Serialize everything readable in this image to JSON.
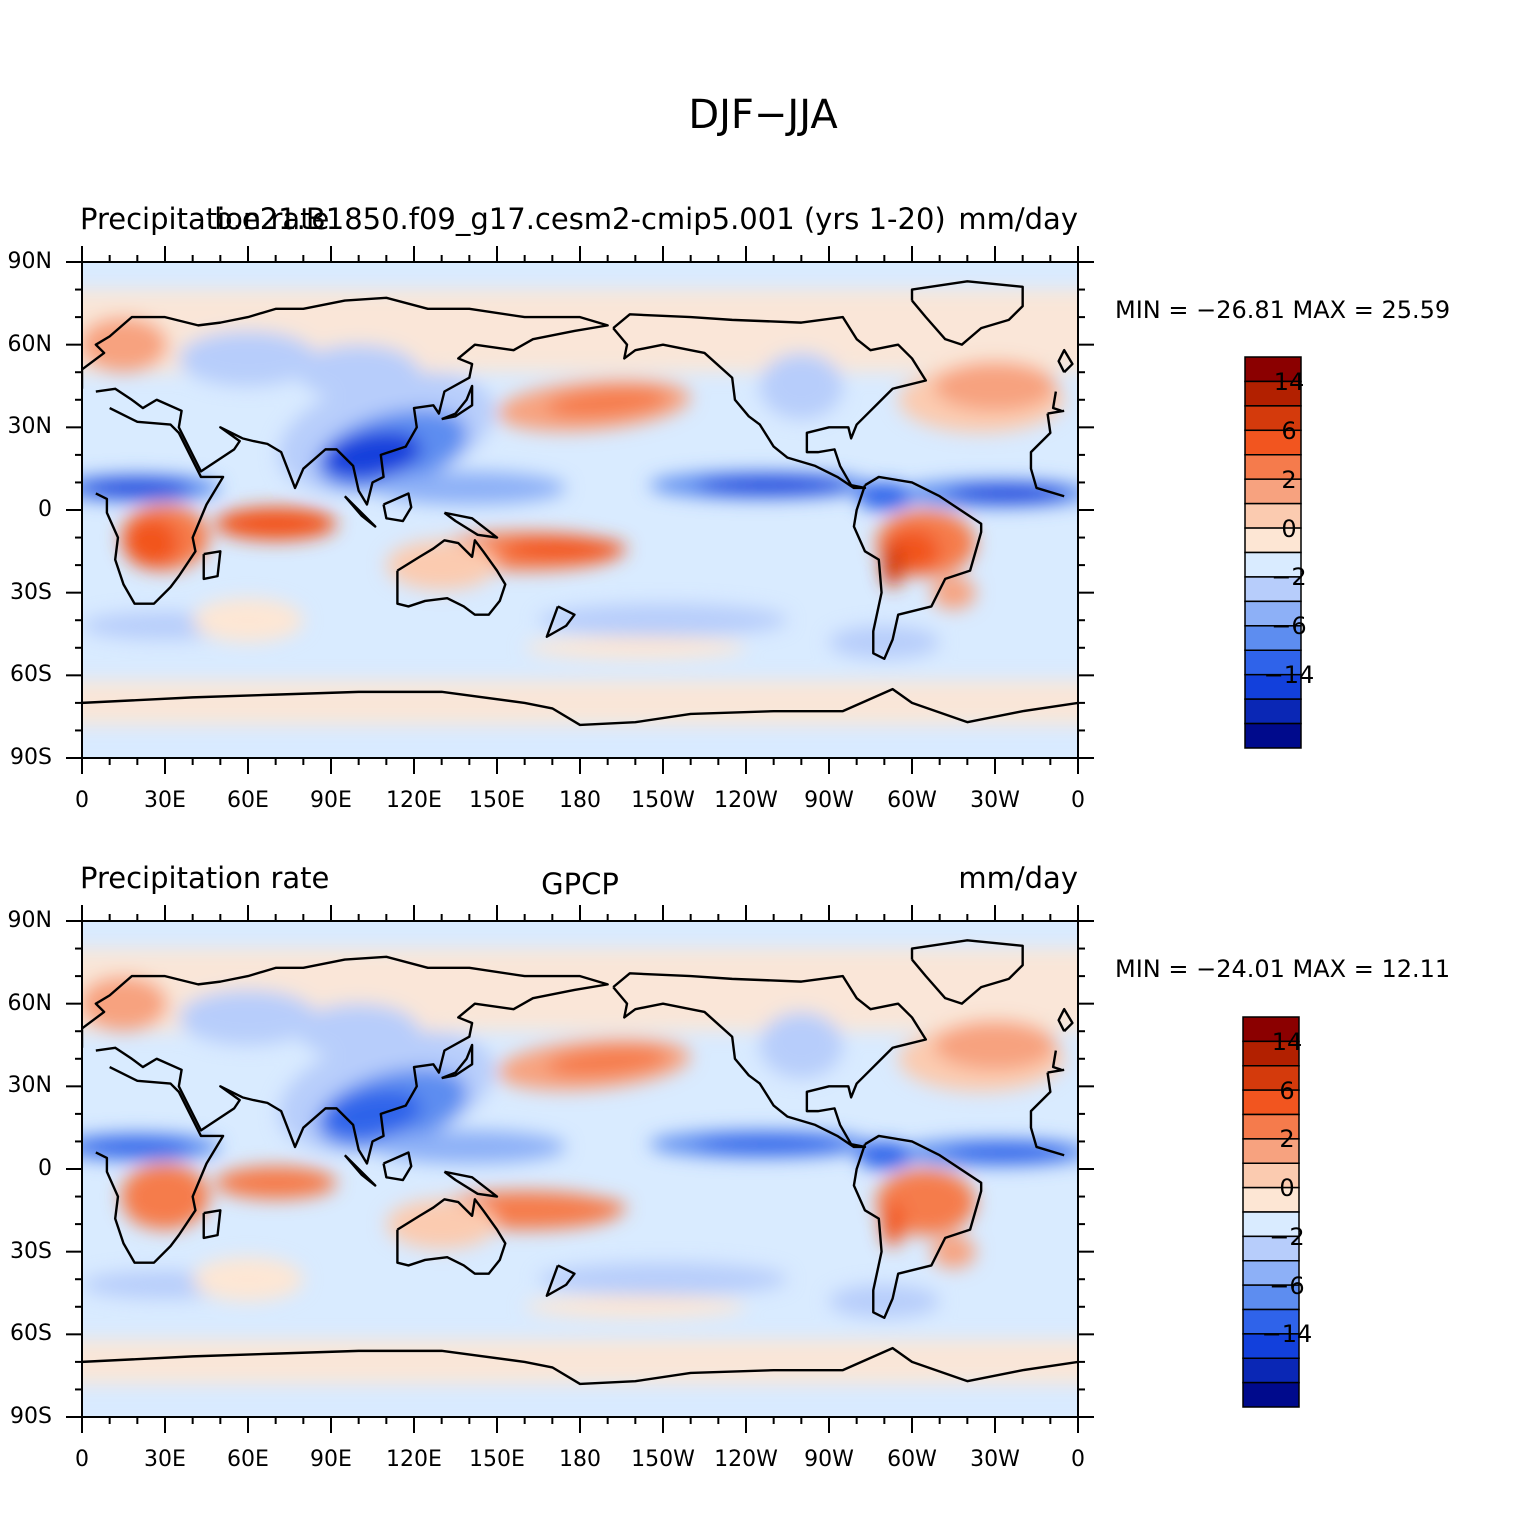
{
  "figure": {
    "title": "DJF−JJA"
  },
  "panels": [
    {
      "id": "model",
      "left_title": "Precipitation rate",
      "center_title": "b.e21.B1850.f09_g17.cesm2-cmip5.001 (yrs 1-20)",
      "right_title": "mm/day",
      "stats": "MIN = −26.81  MAX =   25.59",
      "min": -26.81,
      "max": 25.59
    },
    {
      "id": "obs",
      "left_title": "Precipitation rate",
      "center_title": "GPCP",
      "right_title": "mm/day",
      "stats": "MIN = −24.01  MAX =   12.11",
      "min": -24.01,
      "max": 12.11
    }
  ],
  "axes": {
    "lat_labels": [
      "90N",
      "60N",
      "30N",
      "0",
      "30S",
      "60S",
      "90S"
    ],
    "lon_labels": [
      "0",
      "30E",
      "60E",
      "90E",
      "120E",
      "150E",
      "180",
      "150W",
      "120W",
      "90W",
      "60W",
      "30W",
      "0"
    ]
  },
  "colorbar": {
    "colors": [
      "#8b0000",
      "#b22000",
      "#d43a0c",
      "#f2551f",
      "#f57b4c",
      "#f7a27f",
      "#fbcbb0",
      "#fde6d4",
      "#d9ebff",
      "#b7cdfb",
      "#8db0f7",
      "#5d8df0",
      "#2f63ea",
      "#1240dc",
      "#0a27b5",
      "#000a8c"
    ],
    "labels": [
      "14",
      "6",
      "2",
      "0",
      "−2",
      "−6",
      "−14"
    ]
  },
  "palette": {
    "background": "#d9ebff",
    "coast": "#000000"
  }
}
